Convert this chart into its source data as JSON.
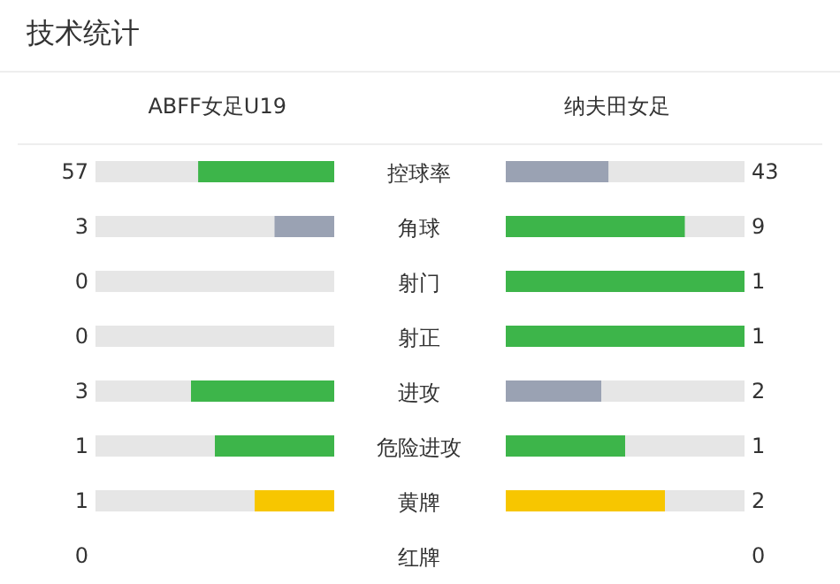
{
  "chart_data": {
    "type": "other",
    "title": "技术统计",
    "data_labels": true,
    "categories": [
      "控球率",
      "角球",
      "射门",
      "射正",
      "进攻",
      "危险进攻",
      "黄牌",
      "红牌"
    ],
    "series": [
      {
        "name": "ABFF女足U19",
        "values": [
          57,
          3,
          0,
          0,
          3,
          1,
          1,
          0
        ],
        "colors": [
          "#3db54a",
          "#9aa2b3",
          "#9aa2b3",
          "#9aa2b3",
          "#3db54a",
          "#3db54a",
          "#f7c600",
          null
        ]
      },
      {
        "name": "纳夫田女足",
        "values": [
          43,
          9,
          1,
          1,
          2,
          1,
          2,
          0
        ],
        "colors": [
          "#9aa2b3",
          "#3db54a",
          "#3db54a",
          "#3db54a",
          "#9aa2b3",
          "#3db54a",
          "#f7c600",
          null
        ]
      }
    ]
  }
}
